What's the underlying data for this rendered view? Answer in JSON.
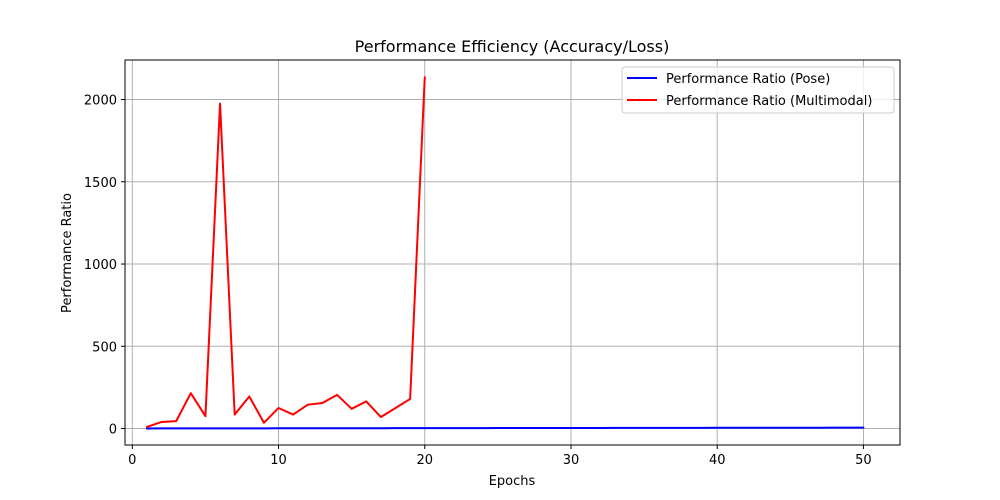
{
  "chart_data": {
    "type": "line",
    "title": "Performance Efficiency (Accuracy/Loss)",
    "xlabel": "Epochs",
    "ylabel": "Performance Ratio",
    "xlim": [
      -0.5,
      52.5
    ],
    "ylim": [
      -100,
      2240
    ],
    "xticks": [
      0,
      10,
      20,
      30,
      40,
      50
    ],
    "yticks": [
      0,
      500,
      1000,
      1500,
      2000
    ],
    "grid": true,
    "legend_position": "top-right",
    "series": [
      {
        "name": "Performance Ratio (Pose)",
        "color": "#0000ff",
        "x": [
          1,
          2,
          3,
          4,
          5,
          6,
          7,
          8,
          9,
          10,
          11,
          12,
          13,
          14,
          15,
          16,
          17,
          18,
          19,
          20,
          21,
          22,
          23,
          24,
          25,
          26,
          27,
          28,
          29,
          30,
          31,
          32,
          33,
          34,
          35,
          36,
          37,
          38,
          39,
          40,
          41,
          42,
          43,
          44,
          45,
          46,
          47,
          48,
          49,
          50
        ],
        "y": [
          0.5,
          0.7,
          0.8,
          0.9,
          1.0,
          1.1,
          1.2,
          1.3,
          1.4,
          1.5,
          1.6,
          1.7,
          1.8,
          1.9,
          2.0,
          2.1,
          2.2,
          2.3,
          2.4,
          2.5,
          2.6,
          2.7,
          2.8,
          2.9,
          3.0,
          3.1,
          3.2,
          3.3,
          3.4,
          3.5,
          3.6,
          3.7,
          3.8,
          3.9,
          4.0,
          4.1,
          4.2,
          4.3,
          4.4,
          4.5,
          4.6,
          4.7,
          4.8,
          4.9,
          5.0,
          5.1,
          5.2,
          5.3,
          5.4,
          5.5
        ]
      },
      {
        "name": "Performance Ratio (Multimodal)",
        "color": "#ff0000",
        "x": [
          1,
          2,
          3,
          4,
          5,
          6,
          7,
          8,
          9,
          10,
          11,
          12,
          13,
          14,
          15,
          16,
          17,
          18,
          19,
          20
        ],
        "y": [
          10,
          40,
          45,
          215,
          75,
          1975,
          85,
          195,
          35,
          125,
          85,
          145,
          155,
          205,
          120,
          165,
          70,
          125,
          180,
          2135
        ]
      }
    ]
  }
}
